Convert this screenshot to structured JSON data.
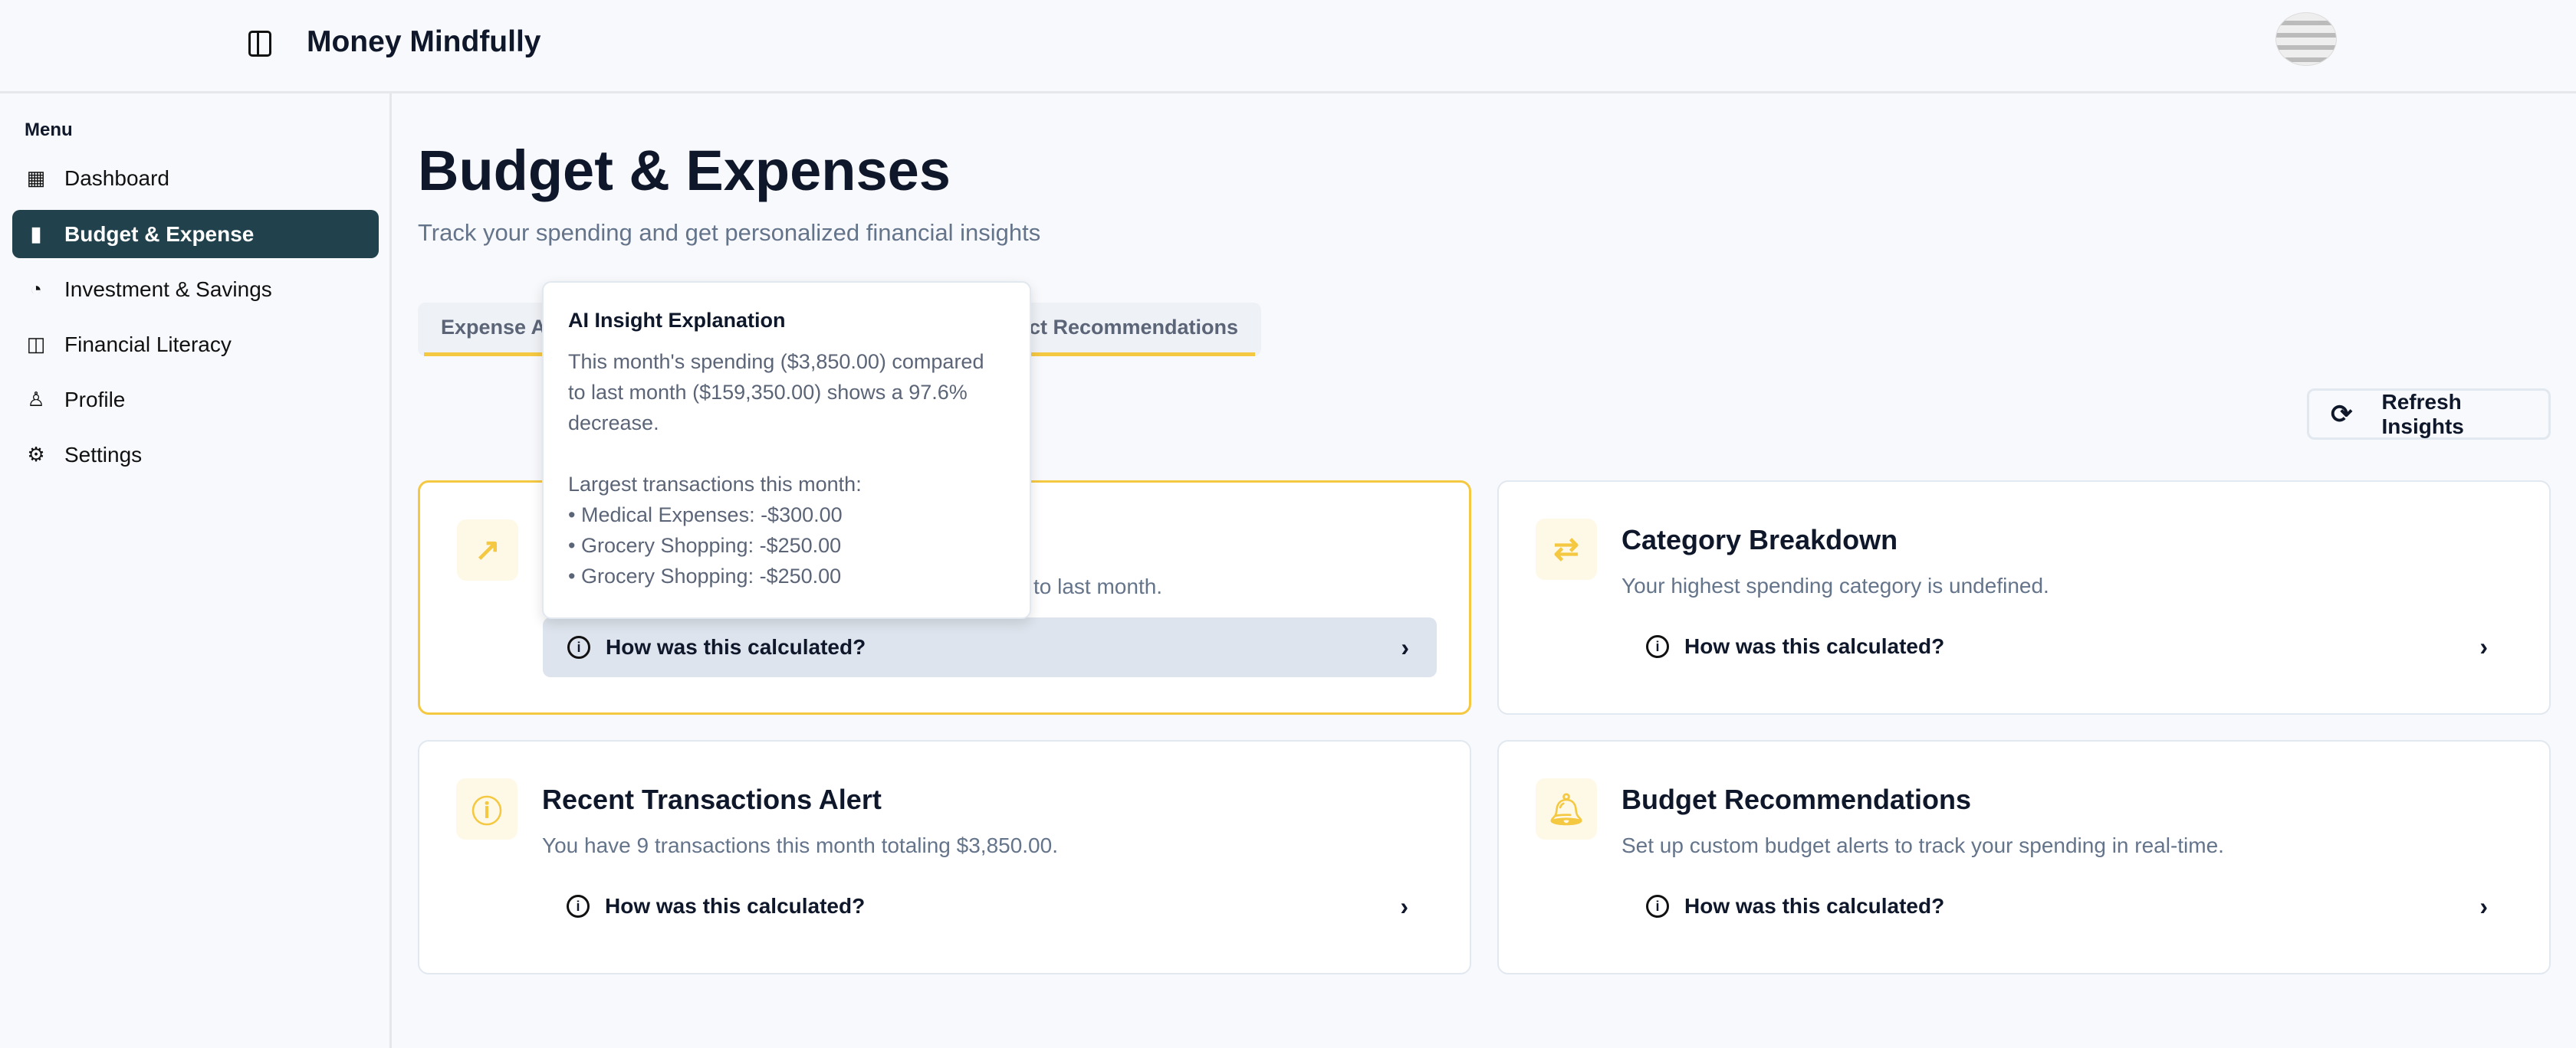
{
  "header": {
    "app_title": "Money Mindfully"
  },
  "sidebar": {
    "menu_label": "Menu",
    "items": [
      {
        "label": "Dashboard",
        "icon": "dashboard-icon"
      },
      {
        "label": "Budget & Expense",
        "icon": "bar-chart-icon",
        "active": true
      },
      {
        "label": "Investment & Savings",
        "icon": "piggy-bank-icon"
      },
      {
        "label": "Financial Literacy",
        "icon": "book-icon"
      },
      {
        "label": "Profile",
        "icon": "user-icon"
      },
      {
        "label": "Settings",
        "icon": "gear-icon"
      }
    ]
  },
  "main": {
    "title": "Budget & Expenses",
    "subtitle": "Track your spending and get personalized financial insights",
    "tabs": [
      {
        "label": "Expense A"
      },
      {
        "label": "ct Recommendations"
      }
    ],
    "refresh_label": "Refresh Insights",
    "cards": [
      {
        "title": "",
        "description": "to last month.",
        "calc": "How was this calculated?"
      },
      {
        "title": "Category Breakdown",
        "description": "Your highest spending category is undefined.",
        "calc": "How was this calculated?"
      },
      {
        "title": "Recent Transactions Alert",
        "description": "You have 9 transactions this month totaling $3,850.00.",
        "calc": "How was this calculated?"
      },
      {
        "title": "Budget Recommendations",
        "description": "Set up custom budget alerts to track your spending in real-time.",
        "calc": "How was this calculated?"
      }
    ],
    "tooltip": {
      "title": "AI Insight Explanation",
      "line1": "This month's spending ($3,850.00) compared to last month ($159,350.00) shows a 97.6% decrease.",
      "list_title": "Largest transactions this month:",
      "items": [
        "• Medical Expenses: -$300.00",
        "• Grocery Shopping: -$250.00",
        "• Grocery Shopping: -$250.00"
      ]
    }
  },
  "colors": {
    "accent": "#f5c842",
    "sidebar_active": "#21414d",
    "hover_row": "#dee4ed"
  }
}
